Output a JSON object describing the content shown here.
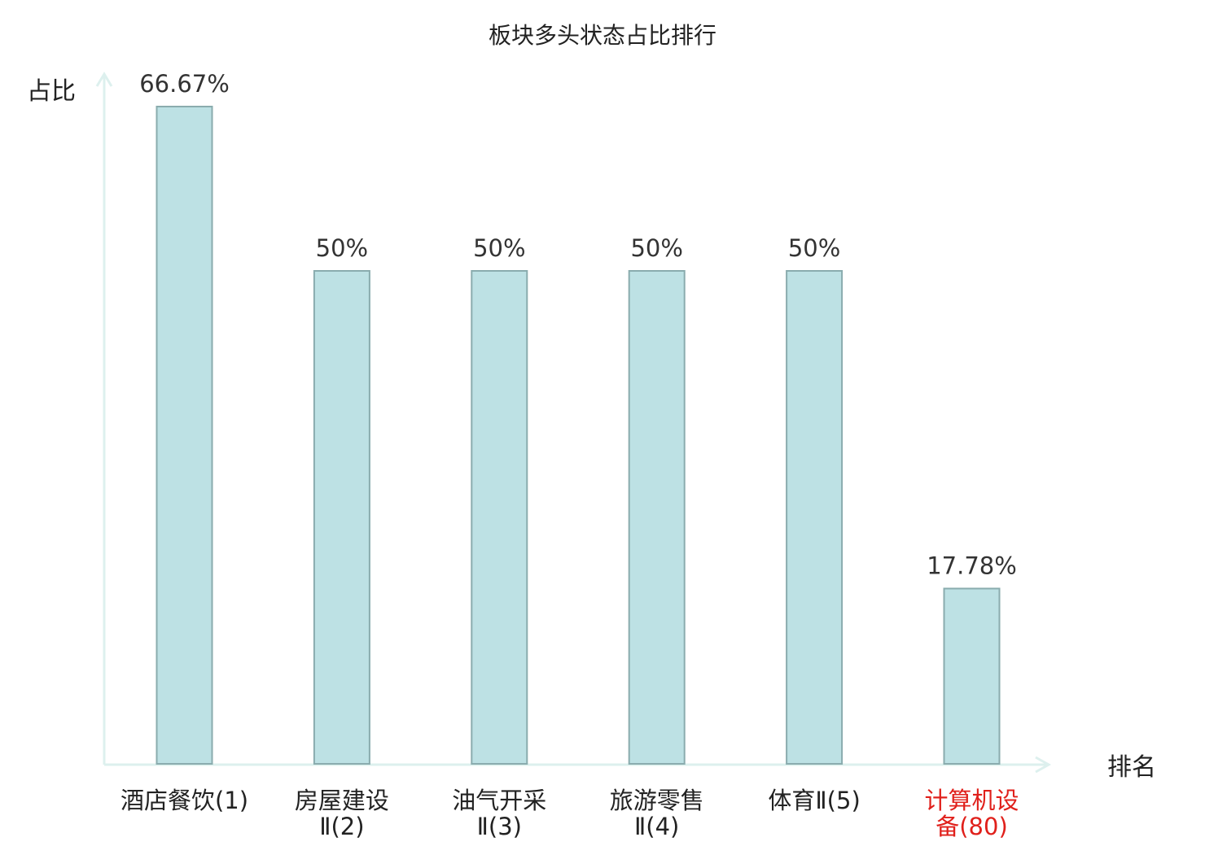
{
  "chart_data": {
    "type": "bar",
    "title": "板块多头状态占比排行",
    "xlabel": "排名",
    "ylabel": "占比",
    "categories": [
      [
        "酒店餐饮(1)"
      ],
      [
        "房屋建设",
        "Ⅱ(2)"
      ],
      [
        "油气开采",
        "Ⅱ(3)"
      ],
      [
        "旅游零售",
        "Ⅱ(4)"
      ],
      [
        "体育Ⅱ(5)"
      ],
      [
        "计算机设",
        "备(80)"
      ]
    ],
    "values": [
      66.67,
      50,
      50,
      50,
      50,
      17.78
    ],
    "value_labels": [
      "66.67%",
      "50%",
      "50%",
      "50%",
      "50%",
      "17.78%"
    ],
    "ylim": [
      0,
      70
    ],
    "grid": false,
    "colors": {
      "bar_fill": "#bde1e4",
      "bar_stroke": "#8aacae",
      "axis": "#ddf0ee",
      "label": "#222222",
      "value_label": "#333333",
      "highlight": "#e0201b"
    },
    "highlight_index": 5
  }
}
